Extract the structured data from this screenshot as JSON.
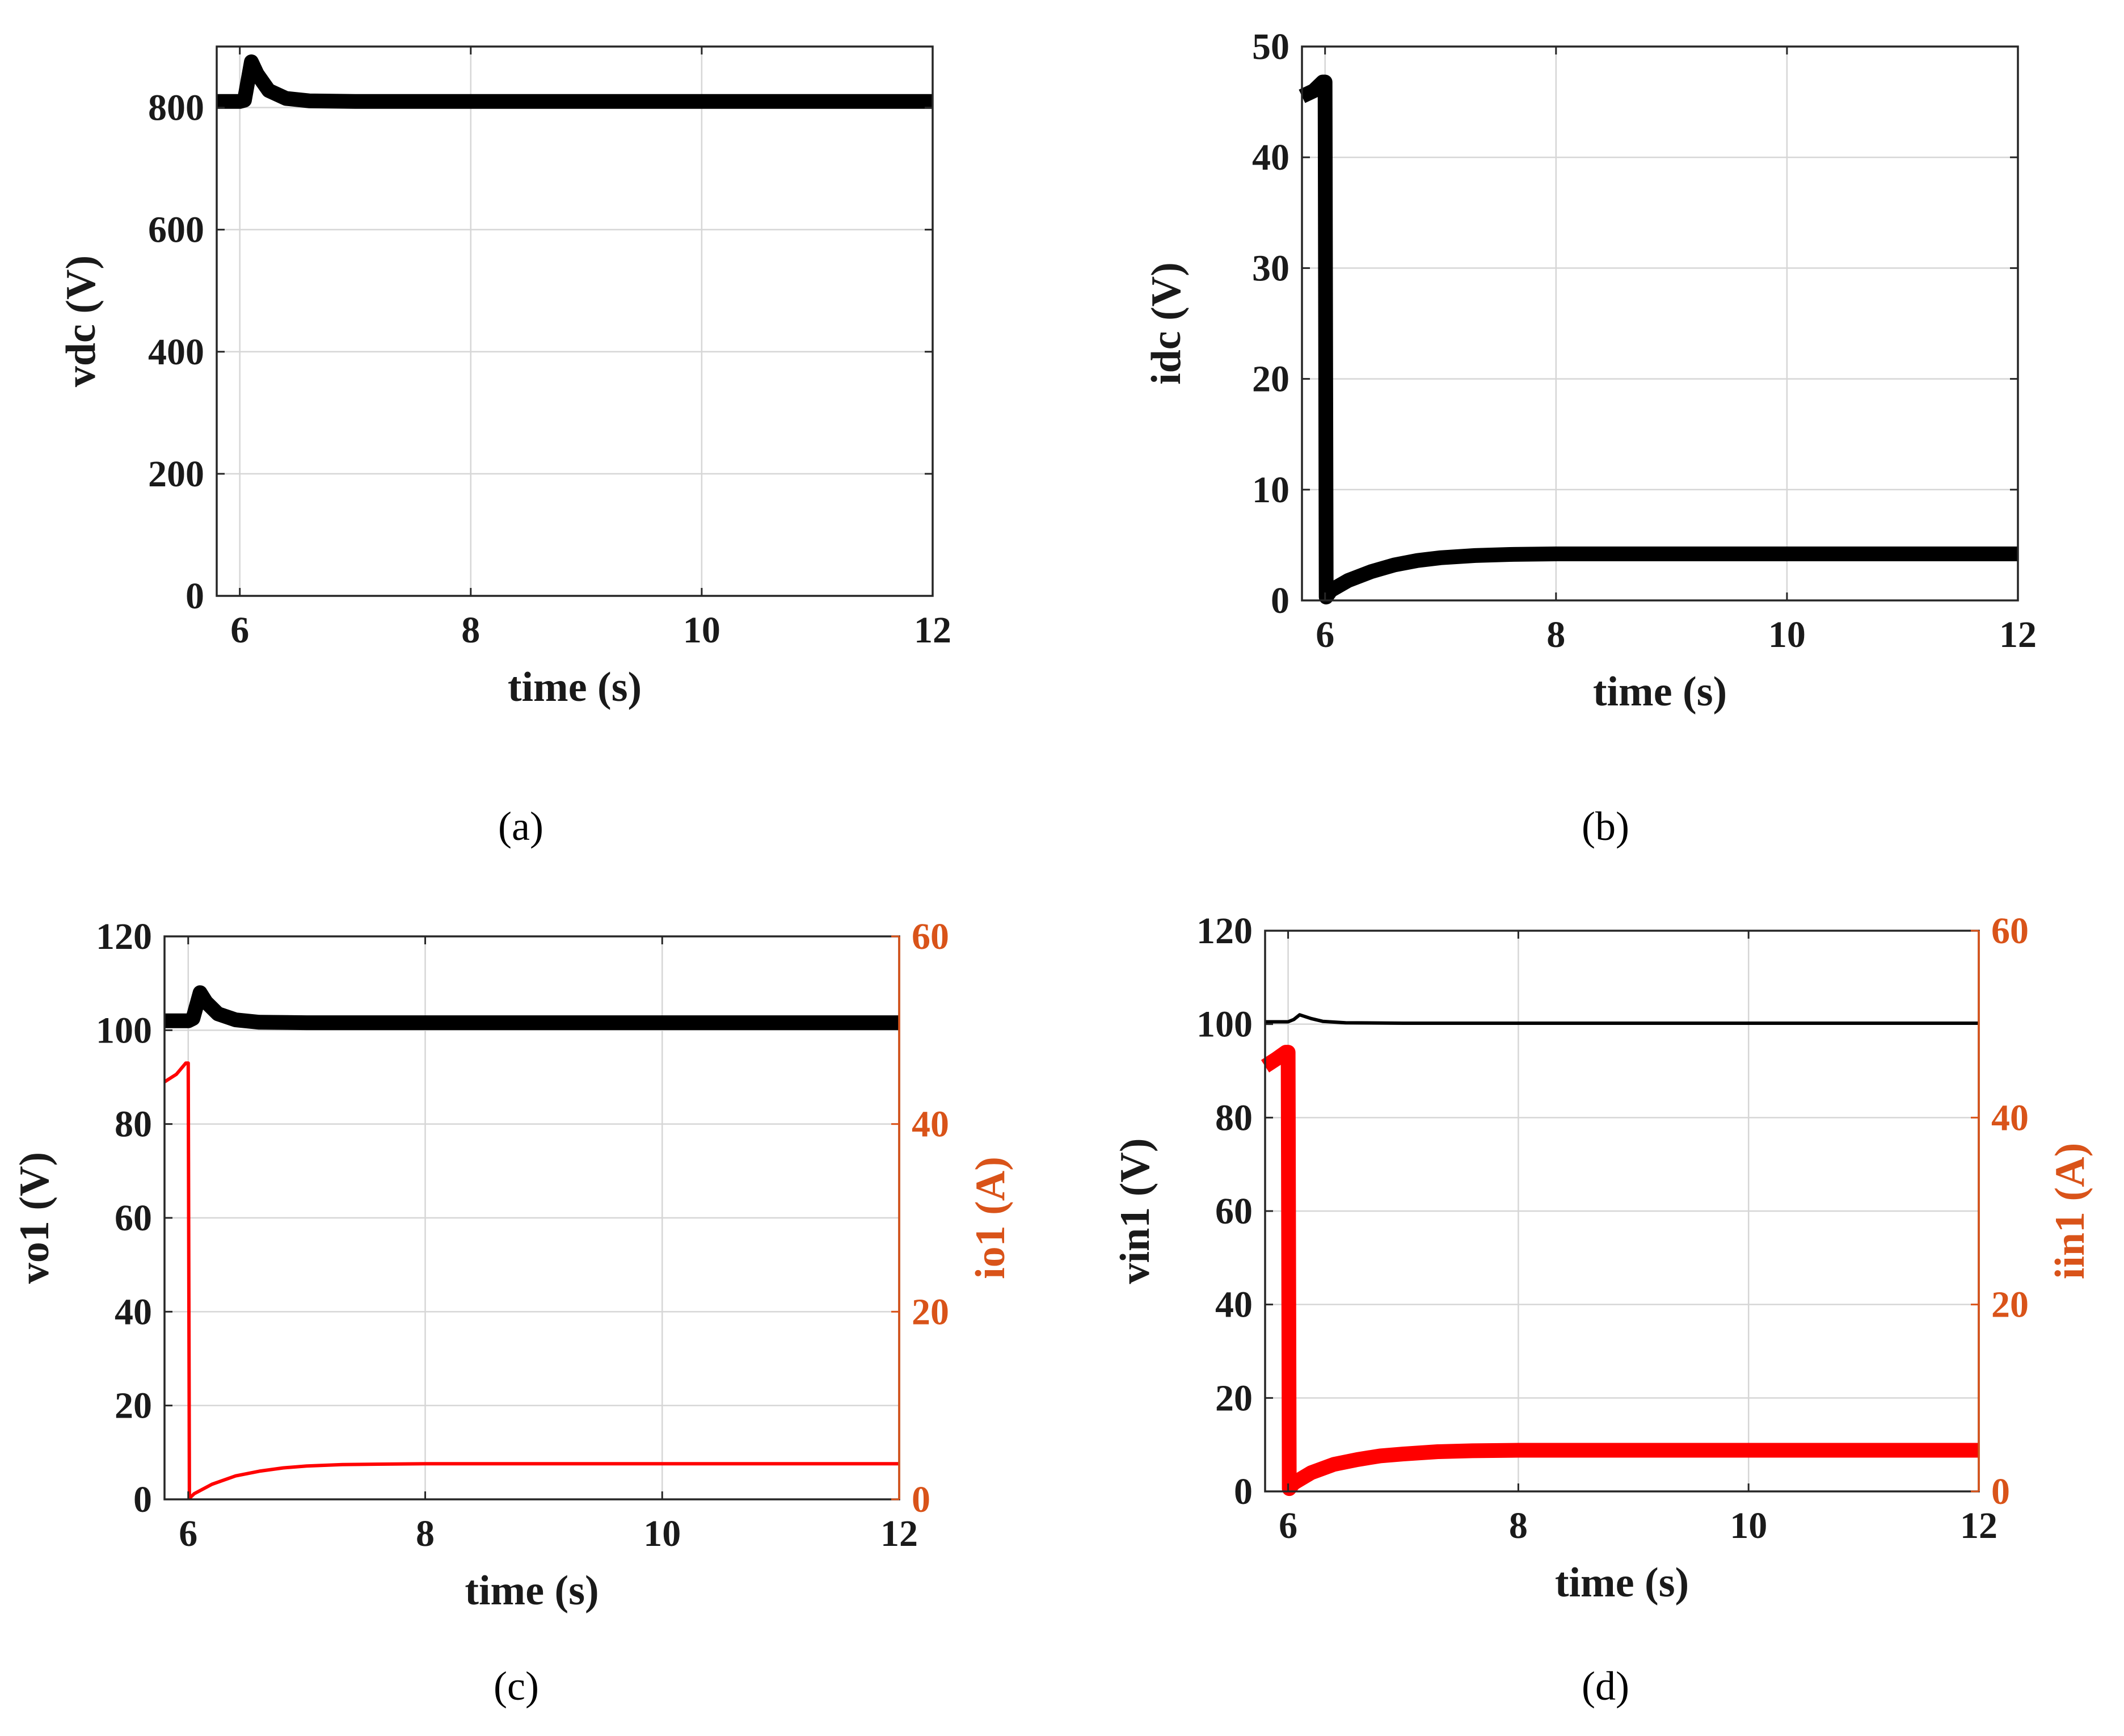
{
  "figure": {
    "panels": [
      "(a)",
      "(b)",
      "(c)",
      "(d)"
    ]
  },
  "colors": {
    "axis": "#262626",
    "grid": "#d6d6d6",
    "primary_series": "#000000",
    "secondary_series": "#ff0000",
    "secondary_axis": "#d95319"
  },
  "chart_data": [
    {
      "id": "a",
      "caption": "(a)",
      "type": "line",
      "title": "",
      "xlabel": "time (s)",
      "ylabel": "vdc (V)",
      "xlim": [
        5.8,
        12
      ],
      "ylim": [
        0,
        900
      ],
      "xticks": [
        6,
        8,
        10,
        12
      ],
      "yticks": [
        0,
        200,
        400,
        600,
        800
      ],
      "grid": true,
      "series": [
        {
          "name": "vdc",
          "axis": "left",
          "color": "#000000",
          "thick": true,
          "x": [
            5.8,
            6.0,
            6.04,
            6.1,
            6.15,
            6.25,
            6.4,
            6.6,
            7.0,
            8.0,
            10.0,
            12.0
          ],
          "y": [
            810,
            810,
            812,
            875,
            855,
            828,
            815,
            811,
            810,
            810,
            810,
            810
          ]
        }
      ]
    },
    {
      "id": "b",
      "caption": "(b)",
      "type": "line",
      "title": "",
      "xlabel": "time (s)",
      "ylabel": "idc (V)",
      "xlim": [
        5.8,
        12
      ],
      "ylim": [
        0,
        50
      ],
      "xticks": [
        6,
        8,
        10,
        12
      ],
      "yticks": [
        0,
        10,
        20,
        30,
        40,
        50
      ],
      "grid": true,
      "series": [
        {
          "name": "idc",
          "axis": "left",
          "color": "#000000",
          "thick": true,
          "x": [
            5.8,
            5.9,
            5.98,
            6.0,
            6.01,
            6.05,
            6.2,
            6.4,
            6.6,
            6.8,
            7.0,
            7.3,
            7.6,
            8.0,
            10.0,
            12.0
          ],
          "y": [
            45.5,
            46.0,
            46.8,
            46.8,
            0.3,
            0.9,
            1.8,
            2.6,
            3.2,
            3.6,
            3.85,
            4.05,
            4.15,
            4.2,
            4.2,
            4.2
          ]
        }
      ]
    },
    {
      "id": "c",
      "caption": "(c)",
      "type": "line",
      "title": "",
      "xlabel": "time (s)",
      "ylabel": "vo1 (V)",
      "y2label": "io1 (A)",
      "xlim": [
        5.8,
        12
      ],
      "ylim": [
        0,
        120
      ],
      "y2lim": [
        0,
        60
      ],
      "xticks": [
        6,
        8,
        10,
        12
      ],
      "yticks": [
        0,
        20,
        40,
        60,
        80,
        100,
        120
      ],
      "y2ticks": [
        0,
        20,
        40,
        60
      ],
      "grid": true,
      "series": [
        {
          "name": "vo1",
          "axis": "left",
          "color": "#000000",
          "thick": true,
          "x": [
            5.8,
            6.0,
            6.04,
            6.1,
            6.15,
            6.25,
            6.4,
            6.6,
            7.0,
            8.0,
            10.0,
            12.0
          ],
          "y": [
            102,
            102,
            102.5,
            108,
            106,
            103.5,
            102.2,
            101.7,
            101.6,
            101.6,
            101.6,
            101.6
          ]
        },
        {
          "name": "io1",
          "axis": "right",
          "color": "#ff0000",
          "thick": false,
          "x": [
            5.8,
            5.9,
            5.98,
            6.0,
            6.01,
            6.05,
            6.2,
            6.4,
            6.6,
            6.8,
            7.0,
            7.3,
            7.6,
            8.0,
            10.0,
            12.0
          ],
          "y": [
            44.5,
            45.3,
            46.5,
            46.5,
            0.1,
            0.6,
            1.6,
            2.5,
            3.0,
            3.35,
            3.55,
            3.7,
            3.75,
            3.8,
            3.8,
            3.8
          ]
        }
      ]
    },
    {
      "id": "d",
      "caption": "(d)",
      "type": "line",
      "title": "",
      "xlabel": "time (s)",
      "ylabel": "vin1 (V)",
      "y2label": "iin1 (A)",
      "xlim": [
        5.8,
        12
      ],
      "ylim": [
        0,
        120
      ],
      "y2lim": [
        0,
        60
      ],
      "xticks": [
        6,
        8,
        10,
        12
      ],
      "yticks": [
        0,
        20,
        40,
        60,
        80,
        100,
        120
      ],
      "y2ticks": [
        0,
        20,
        40,
        60
      ],
      "grid": true,
      "series": [
        {
          "name": "vin1",
          "axis": "left",
          "color": "#000000",
          "thick": false,
          "x": [
            5.8,
            6.0,
            6.05,
            6.1,
            6.2,
            6.3,
            6.5,
            7.0,
            8.0,
            10.0,
            12.0
          ],
          "y": [
            100.5,
            100.5,
            101,
            102,
            101.2,
            100.6,
            100.3,
            100.2,
            100.2,
            100.2,
            100.2
          ]
        },
        {
          "name": "iin1",
          "axis": "right",
          "color": "#ff0000",
          "thick": true,
          "x": [
            5.8,
            5.9,
            5.98,
            6.0,
            6.01,
            6.05,
            6.2,
            6.4,
            6.6,
            6.8,
            7.0,
            7.3,
            7.6,
            8.0,
            10.0,
            12.0
          ],
          "y": [
            45.5,
            46.3,
            47.0,
            47.0,
            0.3,
            0.9,
            2.0,
            2.9,
            3.4,
            3.8,
            4.0,
            4.25,
            4.35,
            4.4,
            4.4,
            4.4
          ]
        }
      ]
    }
  ]
}
